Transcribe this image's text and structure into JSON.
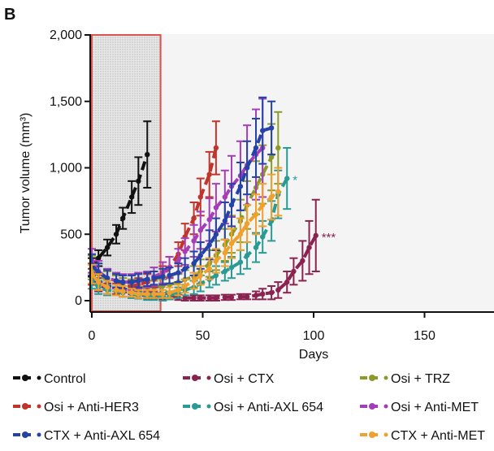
{
  "panel_label": "B",
  "chart_data": {
    "type": "line",
    "title": "",
    "xlabel": "Days",
    "ylabel": "Tumor volume (mm³)",
    "xlim": [
      -2,
      180
    ],
    "ylim": [
      -60,
      2000
    ],
    "x_ticks": [
      0,
      50,
      100,
      150
    ],
    "x_tick_labels": [
      "0",
      "50",
      "100",
      "150"
    ],
    "y_ticks": [
      0,
      500,
      1000,
      1500,
      2000
    ],
    "y_tick_labels": [
      "0",
      "500",
      "1,000",
      "1,500",
      "2,000"
    ],
    "grid": false,
    "legend_position": "bottom",
    "treatment_window_days": [
      0,
      31
    ],
    "series": [
      {
        "name": "Control",
        "color": "#111111",
        "x": [
          0,
          3,
          7,
          11,
          14,
          18,
          21,
          25
        ],
        "y": [
          250,
          320,
          400,
          500,
          620,
          780,
          900,
          1100
        ],
        "err": [
          70,
          60,
          60,
          70,
          80,
          120,
          180,
          250
        ]
      },
      {
        "name": "Osi + CTX",
        "color": "#8b2351",
        "x": [
          0,
          3,
          7,
          11,
          14,
          18,
          21,
          25,
          28,
          32,
          35,
          39,
          42,
          46,
          49,
          53,
          56,
          60,
          63,
          67,
          70,
          74,
          77,
          81,
          84,
          88,
          91,
          95,
          98,
          101
        ],
        "y": [
          180,
          120,
          90,
          70,
          60,
          50,
          45,
          40,
          40,
          35,
          30,
          25,
          20,
          20,
          20,
          20,
          20,
          25,
          25,
          30,
          30,
          40,
          50,
          60,
          80,
          140,
          220,
          300,
          400,
          490
        ],
        "err": [
          60,
          50,
          40,
          30,
          30,
          30,
          25,
          25,
          25,
          25,
          20,
          20,
          20,
          20,
          20,
          20,
          20,
          20,
          20,
          20,
          20,
          30,
          40,
          50,
          60,
          80,
          100,
          150,
          200,
          270
        ]
      },
      {
        "name": "Osi + TRZ",
        "color": "#8c9a2a",
        "x": [
          0,
          3,
          7,
          11,
          14,
          18,
          21,
          25,
          28,
          32,
          35,
          39,
          42,
          46,
          49,
          53,
          56,
          60,
          63,
          67,
          70,
          74,
          77,
          81,
          84
        ],
        "y": [
          250,
          200,
          150,
          130,
          120,
          110,
          100,
          100,
          100,
          110,
          120,
          140,
          160,
          180,
          220,
          280,
          340,
          420,
          500,
          600,
          720,
          850,
          950,
          1080,
          1150
        ],
        "err": [
          90,
          80,
          70,
          60,
          50,
          50,
          50,
          50,
          50,
          50,
          60,
          60,
          70,
          80,
          90,
          100,
          110,
          120,
          140,
          160,
          180,
          200,
          220,
          250,
          270
        ]
      },
      {
        "name": "Osi + Anti-HER3",
        "color": "#c0342b",
        "x": [
          0,
          3,
          7,
          11,
          14,
          18,
          21,
          25,
          28,
          32,
          35,
          39,
          42,
          46,
          49,
          53,
          56
        ],
        "y": [
          200,
          140,
          100,
          90,
          100,
          110,
          120,
          140,
          160,
          190,
          250,
          350,
          480,
          620,
          780,
          950,
          1150
        ],
        "err": [
          80,
          60,
          50,
          40,
          40,
          40,
          50,
          60,
          60,
          70,
          80,
          90,
          100,
          120,
          140,
          170,
          200
        ]
      },
      {
        "name": "Osi + Anti-AXL 654",
        "color": "#2a9a94",
        "x": [
          0,
          3,
          7,
          11,
          14,
          18,
          21,
          25,
          28,
          32,
          35,
          39,
          42,
          46,
          49,
          53,
          56,
          60,
          63,
          67,
          70,
          74,
          77,
          81,
          84,
          88
        ],
        "y": [
          150,
          100,
          80,
          70,
          60,
          50,
          40,
          30,
          30,
          30,
          40,
          60,
          80,
          100,
          130,
          160,
          190,
          220,
          250,
          290,
          340,
          400,
          480,
          600,
          800,
          920
        ],
        "err": [
          60,
          50,
          40,
          30,
          30,
          30,
          25,
          25,
          25,
          30,
          30,
          40,
          40,
          50,
          60,
          60,
          70,
          70,
          80,
          90,
          100,
          110,
          120,
          150,
          180,
          230
        ]
      },
      {
        "name": "Osi + Anti-MET",
        "color": "#a63db8",
        "x": [
          0,
          3,
          7,
          11,
          14,
          18,
          21,
          25,
          28,
          32,
          35,
          39,
          42,
          46,
          49,
          53,
          56,
          60,
          63,
          67,
          70,
          74,
          77
        ],
        "y": [
          300,
          220,
          170,
          150,
          140,
          140,
          150,
          160,
          180,
          210,
          250,
          300,
          370,
          450,
          530,
          610,
          700,
          780,
          860,
          940,
          1020,
          1100,
          1150
        ],
        "err": [
          90,
          80,
          70,
          60,
          60,
          60,
          60,
          60,
          70,
          80,
          80,
          90,
          100,
          120,
          140,
          160,
          180,
          200,
          230,
          260,
          300,
          340,
          370
        ]
      },
      {
        "name": "CTX + Anti-AXL 654",
        "color": "#2542a8",
        "x": [
          0,
          3,
          7,
          11,
          14,
          18,
          21,
          25,
          28,
          32,
          35,
          39,
          42,
          46,
          49,
          53,
          56,
          60,
          63,
          67,
          70,
          74,
          77,
          81
        ],
        "y": [
          270,
          210,
          170,
          150,
          140,
          140,
          150,
          160,
          170,
          180,
          190,
          210,
          240,
          280,
          340,
          420,
          500,
          600,
          720,
          860,
          1000,
          1150,
          1280,
          1300
        ],
        "err": [
          80,
          70,
          60,
          50,
          50,
          50,
          50,
          50,
          50,
          60,
          60,
          70,
          80,
          90,
          100,
          110,
          120,
          140,
          160,
          180,
          200,
          220,
          250,
          200
        ]
      },
      {
        "name": "CTX + Anti-MET",
        "color": "#f0a02c",
        "x": [
          0,
          3,
          7,
          11,
          14,
          18,
          21,
          25,
          28,
          32,
          35,
          39,
          42,
          46,
          49,
          53,
          56,
          60,
          63,
          67,
          70,
          74,
          77,
          81,
          84
        ],
        "y": [
          200,
          140,
          100,
          80,
          70,
          60,
          50,
          50,
          50,
          50,
          60,
          80,
          110,
          150,
          190,
          240,
          300,
          360,
          430,
          500,
          580,
          650,
          720,
          780,
          820
        ],
        "err": [
          70,
          60,
          50,
          40,
          40,
          30,
          30,
          30,
          30,
          30,
          40,
          40,
          50,
          60,
          70,
          80,
          90,
          100,
          110,
          120,
          140,
          150,
          160,
          170,
          180
        ]
      }
    ],
    "annotations": [
      {
        "text": "*",
        "series": "Osi + Anti-AXL 654",
        "x": 88,
        "y": 920,
        "color": "#2a9a94"
      },
      {
        "text": "***",
        "series": "Osi + CTX",
        "x": 101,
        "y": 490,
        "color": "#8b2351"
      }
    ],
    "legend": [
      {
        "label": "Control",
        "color": "#111111"
      },
      {
        "label": "Osi + CTX",
        "color": "#8b2351"
      },
      {
        "label": "Osi + TRZ",
        "color": "#8c9a2a"
      },
      {
        "label": "Osi + Anti-HER3",
        "color": "#c0342b"
      },
      {
        "label": "Osi + Anti-AXL 654",
        "color": "#2a9a94"
      },
      {
        "label": "Osi + Anti-MET",
        "color": "#a63db8"
      },
      {
        "label": "CTX + Anti-AXL 654",
        "color": "#2542a8"
      },
      {
        "label": "CTX + Anti-MET",
        "color": "#f0a02c"
      }
    ]
  }
}
